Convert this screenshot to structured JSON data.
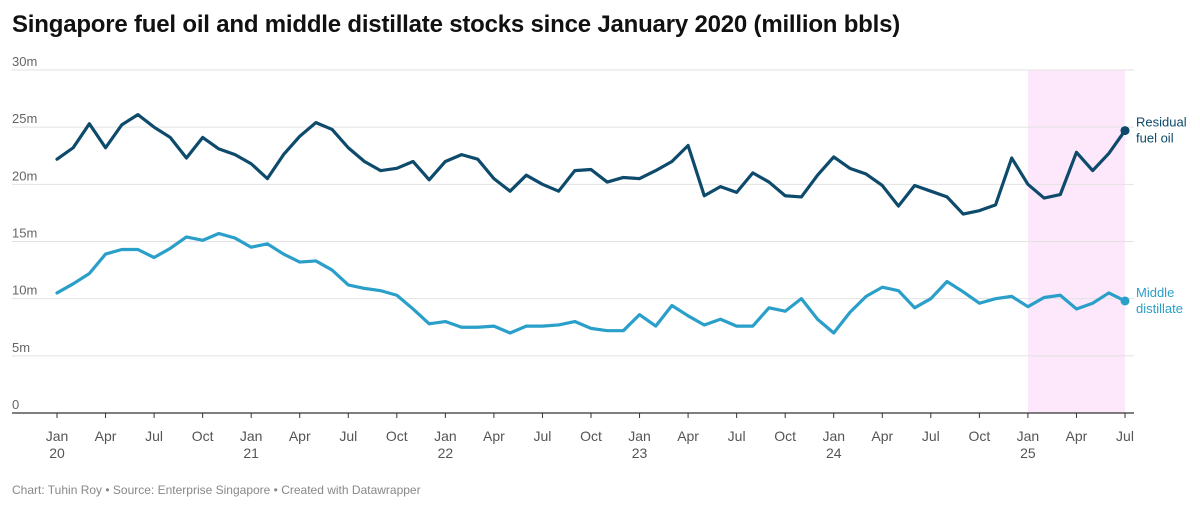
{
  "title": "Singapore fuel oil and middle distillate stocks since January 2020 (million bbls)",
  "footer": "Chart: Tuhin Roy • Source: Enterprise Singapore • Created with Datawrapper",
  "colors": {
    "residual": "#0d4a6b",
    "middle": "#2a9fc9",
    "highlight": "#fde8fb",
    "grid": "#e2e2e2",
    "axis": "#333333",
    "tick_text": "#666666"
  },
  "chart_data": {
    "type": "line",
    "title": "Singapore fuel oil and middle distillate stocks since January 2020 (million bbls)",
    "xlabel": "",
    "ylabel": "",
    "ylim": [
      0,
      30
    ],
    "yticks": [
      0,
      5,
      10,
      15,
      20,
      25,
      30
    ],
    "ytick_labels": [
      "0",
      "5m",
      "10m",
      "15m",
      "20m",
      "25m",
      "30m"
    ],
    "x_start": "2020-01",
    "x_end": "2025-07",
    "xticks": [
      {
        "month": "2020-01",
        "label": "Jan",
        "label2": "20"
      },
      {
        "month": "2020-04",
        "label": "Apr",
        "label2": ""
      },
      {
        "month": "2020-07",
        "label": "Jul",
        "label2": ""
      },
      {
        "month": "2020-10",
        "label": "Oct",
        "label2": ""
      },
      {
        "month": "2021-01",
        "label": "Jan",
        "label2": "21"
      },
      {
        "month": "2021-04",
        "label": "Apr",
        "label2": ""
      },
      {
        "month": "2021-07",
        "label": "Jul",
        "label2": ""
      },
      {
        "month": "2021-10",
        "label": "Oct",
        "label2": ""
      },
      {
        "month": "2022-01",
        "label": "Jan",
        "label2": "22"
      },
      {
        "month": "2022-04",
        "label": "Apr",
        "label2": ""
      },
      {
        "month": "2022-07",
        "label": "Jul",
        "label2": ""
      },
      {
        "month": "2022-10",
        "label": "Oct",
        "label2": ""
      },
      {
        "month": "2023-01",
        "label": "Jan",
        "label2": "23"
      },
      {
        "month": "2023-04",
        "label": "Apr",
        "label2": ""
      },
      {
        "month": "2023-07",
        "label": "Jul",
        "label2": ""
      },
      {
        "month": "2023-10",
        "label": "Oct",
        "label2": ""
      },
      {
        "month": "2024-01",
        "label": "Jan",
        "label2": "24"
      },
      {
        "month": "2024-04",
        "label": "Apr",
        "label2": ""
      },
      {
        "month": "2024-07",
        "label": "Jul",
        "label2": ""
      },
      {
        "month": "2024-10",
        "label": "Oct",
        "label2": ""
      },
      {
        "month": "2025-01",
        "label": "Jan",
        "label2": "25"
      },
      {
        "month": "2025-04",
        "label": "Apr",
        "label2": ""
      },
      {
        "month": "2025-07",
        "label": "Jul",
        "label2": ""
      }
    ],
    "highlight_range": [
      "2025-01",
      "2025-07"
    ],
    "grid": true,
    "series": [
      {
        "name": "Residual fuel oil",
        "label_lines": [
          "Residual",
          "fuel oil"
        ],
        "color": "#0d4a6b",
        "values": [
          22.2,
          23.2,
          25.3,
          23.2,
          25.2,
          26.1,
          25.0,
          24.1,
          22.3,
          24.1,
          23.1,
          22.6,
          21.8,
          20.5,
          22.6,
          24.2,
          25.4,
          24.8,
          23.2,
          22.0,
          21.2,
          21.4,
          22.0,
          20.4,
          22.0,
          22.6,
          22.2,
          20.5,
          19.4,
          20.8,
          20.0,
          19.4,
          21.2,
          21.3,
          20.2,
          20.6,
          20.5,
          21.2,
          22.0,
          23.4,
          19.0,
          19.8,
          19.3,
          21.0,
          20.2,
          19.0,
          18.9,
          20.8,
          22.4,
          21.4,
          20.9,
          19.9,
          18.1,
          19.9,
          19.4,
          18.9,
          17.4,
          17.7,
          18.2,
          22.3,
          20.0,
          18.8,
          19.1,
          22.8,
          21.2,
          22.7,
          24.7
        ]
      },
      {
        "name": "Middle distillate",
        "label_lines": [
          "Middle",
          "distillate"
        ],
        "color": "#2a9fc9",
        "values": [
          10.5,
          11.3,
          12.2,
          13.9,
          14.3,
          14.3,
          13.6,
          14.4,
          15.4,
          15.1,
          15.7,
          15.3,
          14.5,
          14.8,
          13.9,
          13.2,
          13.3,
          12.5,
          11.2,
          10.9,
          10.7,
          10.3,
          9.1,
          7.8,
          8.0,
          7.5,
          7.5,
          7.6,
          7.0,
          7.6,
          7.6,
          7.7,
          8.0,
          7.4,
          7.2,
          7.2,
          8.6,
          7.6,
          9.4,
          8.5,
          7.7,
          8.2,
          7.6,
          7.6,
          9.2,
          8.9,
          10.0,
          8.2,
          7.0,
          8.8,
          10.2,
          11.0,
          10.7,
          9.2,
          10.0,
          11.5,
          10.6,
          9.6,
          10.0,
          10.2,
          9.3,
          10.1,
          10.3,
          9.1,
          9.6,
          10.5,
          9.8
        ]
      }
    ]
  }
}
